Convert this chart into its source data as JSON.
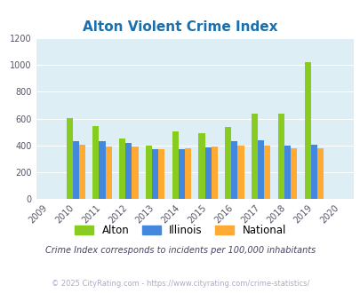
{
  "title": "Alton Violent Crime Index",
  "title_color": "#1a6fad",
  "years": [
    2009,
    2010,
    2011,
    2012,
    2013,
    2014,
    2015,
    2016,
    2017,
    2018,
    2019,
    2020
  ],
  "data_years": [
    2010,
    2011,
    2012,
    2013,
    2014,
    2015,
    2016,
    2017,
    2018,
    2019
  ],
  "alton": [
    605,
    545,
    450,
    400,
    505,
    490,
    535,
    635,
    640,
    1020
  ],
  "illinois": [
    430,
    432,
    418,
    372,
    370,
    388,
    432,
    442,
    400,
    408
  ],
  "national": [
    403,
    390,
    390,
    373,
    380,
    392,
    400,
    400,
    378,
    379
  ],
  "alton_color": "#88cc22",
  "illinois_color": "#4488dd",
  "national_color": "#ffaa33",
  "bg_color": "#deeef5",
  "ylim": [
    0,
    1200
  ],
  "yticks": [
    0,
    200,
    400,
    600,
    800,
    1000,
    1200
  ],
  "grid_color": "#ffffff",
  "subtitle": "Crime Index corresponds to incidents per 100,000 inhabitants",
  "subtitle_color": "#444466",
  "footer": "© 2025 CityRating.com - https://www.cityrating.com/crime-statistics/",
  "footer_color": "#aaaacc",
  "legend_labels": [
    "Alton",
    "Illinois",
    "National"
  ]
}
